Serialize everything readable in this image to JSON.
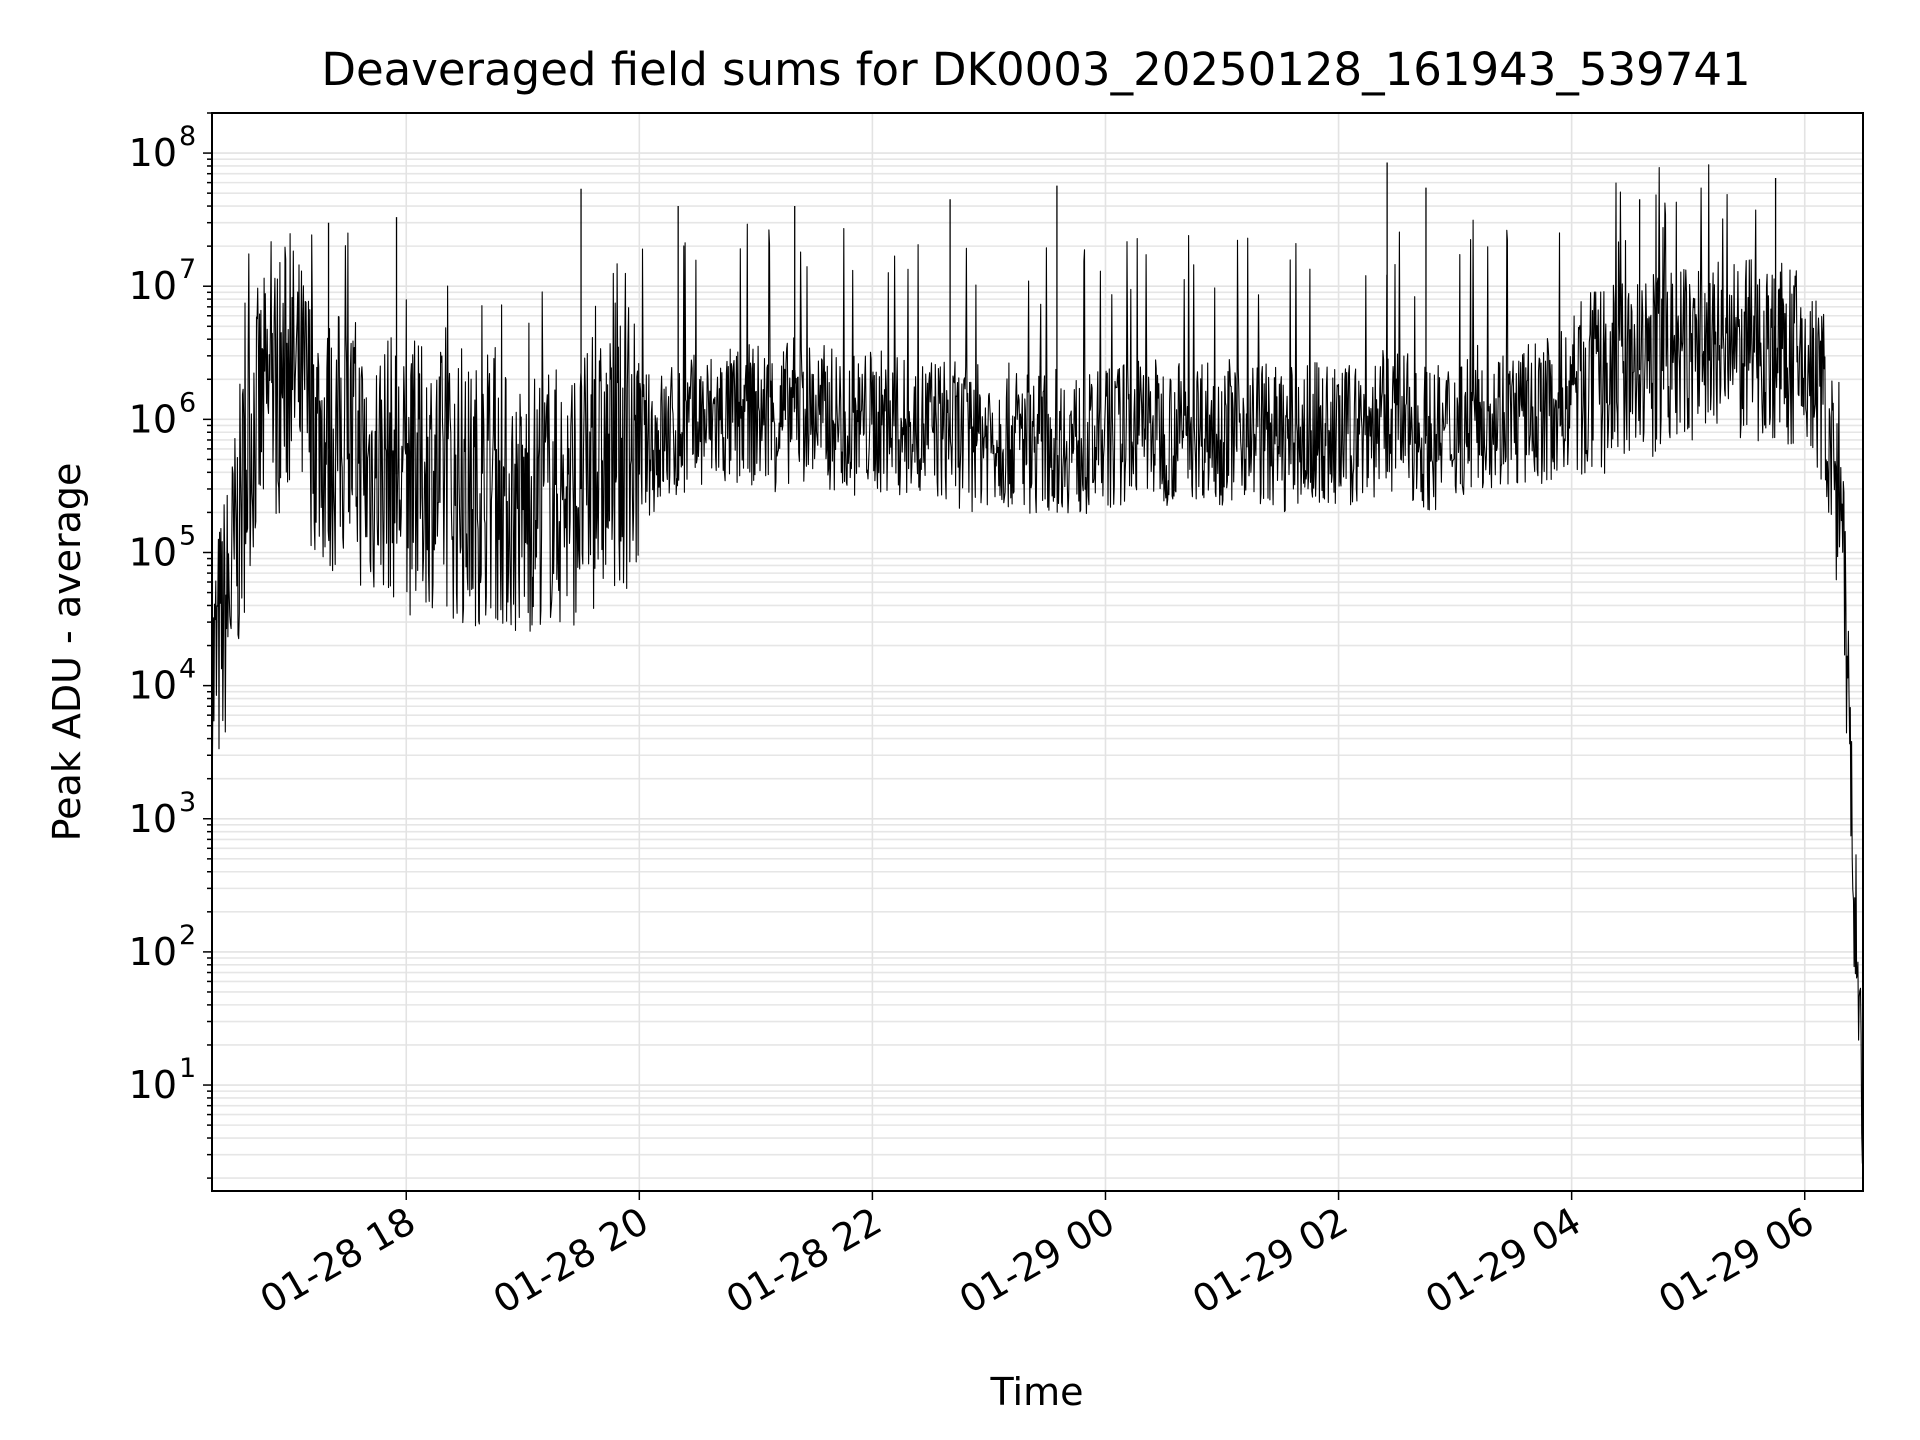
{
  "chart_data": {
    "type": "line",
    "title": "Deaveraged field sums for DK0003_20250128_161943_539741",
    "xlabel": "Time",
    "ylabel": "Peak ADU - average",
    "yscale": "log",
    "ylim": [
      1.6,
      200000000
    ],
    "xlim": [
      "2025-01-28 16:20",
      "2025-01-29 06:30"
    ],
    "grid": true,
    "x_ticks": [
      {
        "value": "2025-01-28 18:00",
        "label": "01-28 18"
      },
      {
        "value": "2025-01-28 20:00",
        "label": "01-28 20"
      },
      {
        "value": "2025-01-28 22:00",
        "label": "01-28 22"
      },
      {
        "value": "2025-01-29 00:00",
        "label": "01-29 00"
      },
      {
        "value": "2025-01-29 02:00",
        "label": "01-29 02"
      },
      {
        "value": "2025-01-29 04:00",
        "label": "01-29 04"
      },
      {
        "value": "2025-01-29 06:00",
        "label": "01-29 06"
      }
    ],
    "y_ticks": [
      {
        "value": 10,
        "base": "10",
        "exp": "1"
      },
      {
        "value": 100,
        "base": "10",
        "exp": "2"
      },
      {
        "value": 1000,
        "base": "10",
        "exp": "3"
      },
      {
        "value": 10000,
        "base": "10",
        "exp": "4"
      },
      {
        "value": 100000,
        "base": "10",
        "exp": "5"
      },
      {
        "value": 1000000,
        "base": "10",
        "exp": "6"
      },
      {
        "value": 10000000,
        "base": "10",
        "exp": "7"
      },
      {
        "value": 100000000,
        "base": "10",
        "exp": "8"
      }
    ],
    "series": [
      {
        "color": "#000000",
        "x": [
          "2025-01-28 16:20",
          "2025-01-28 16:30",
          "2025-01-28 16:40",
          "2025-01-28 16:50",
          "2025-01-28 17:00",
          "2025-01-28 17:10",
          "2025-01-28 17:20",
          "2025-01-28 17:30",
          "2025-01-28 17:40",
          "2025-01-28 17:50",
          "2025-01-28 18:00",
          "2025-01-28 18:10",
          "2025-01-28 18:20",
          "2025-01-28 18:30",
          "2025-01-28 18:40",
          "2025-01-28 18:50",
          "2025-01-28 19:00",
          "2025-01-28 19:10",
          "2025-01-28 19:20",
          "2025-01-28 19:30",
          "2025-01-28 19:40",
          "2025-01-28 19:50",
          "2025-01-28 20:00",
          "2025-01-28 20:10",
          "2025-01-28 20:20",
          "2025-01-28 20:30",
          "2025-01-28 20:40",
          "2025-01-28 20:50",
          "2025-01-28 21:00",
          "2025-01-28 21:10",
          "2025-01-28 21:20",
          "2025-01-28 21:30",
          "2025-01-28 21:40",
          "2025-01-28 21:50",
          "2025-01-28 22:00",
          "2025-01-28 22:10",
          "2025-01-28 22:20",
          "2025-01-28 22:30",
          "2025-01-28 22:40",
          "2025-01-28 22:50",
          "2025-01-28 23:00",
          "2025-01-28 23:10",
          "2025-01-28 23:20",
          "2025-01-28 23:30",
          "2025-01-28 23:40",
          "2025-01-28 23:50",
          "2025-01-29 00:00",
          "2025-01-29 00:10",
          "2025-01-29 00:20",
          "2025-01-29 00:30",
          "2025-01-29 00:40",
          "2025-01-29 00:50",
          "2025-01-29 01:00",
          "2025-01-29 01:10",
          "2025-01-29 01:20",
          "2025-01-29 01:30",
          "2025-01-29 01:40",
          "2025-01-29 01:50",
          "2025-01-29 02:00",
          "2025-01-29 02:10",
          "2025-01-29 02:20",
          "2025-01-29 02:30",
          "2025-01-29 02:40",
          "2025-01-29 02:50",
          "2025-01-29 03:00",
          "2025-01-29 03:10",
          "2025-01-29 03:20",
          "2025-01-29 03:30",
          "2025-01-29 03:40",
          "2025-01-29 03:50",
          "2025-01-29 04:00",
          "2025-01-29 04:10",
          "2025-01-29 04:20",
          "2025-01-29 04:30",
          "2025-01-29 04:40",
          "2025-01-29 04:50",
          "2025-01-29 05:00",
          "2025-01-29 05:10",
          "2025-01-29 05:20",
          "2025-01-29 05:30",
          "2025-01-29 05:40",
          "2025-01-29 05:50",
          "2025-01-29 06:00",
          "2025-01-29 06:10",
          "2025-01-29 06:20",
          "2025-01-29 06:30"
        ],
        "y": [
          10000,
          60000,
          800000,
          1500000,
          2500000,
          1200000,
          600000,
          800000,
          400000,
          500000,
          300000,
          400000,
          350000,
          250000,
          300000,
          250000,
          200000,
          300000,
          250000,
          300000,
          400000,
          500000,
          600000,
          700000,
          800000,
          900000,
          1000000,
          1000000,
          1100000,
          1000000,
          1200000,
          1100000,
          1000000,
          900000,
          1000000,
          900000,
          800000,
          900000,
          800000,
          700000,
          800000,
          750000,
          700000,
          700000,
          700000,
          600000,
          700000,
          800000,
          900000,
          800000,
          800000,
          900000,
          800000,
          900000,
          800000,
          700000,
          700000,
          800000,
          700000,
          800000,
          900000,
          1000000,
          800000,
          700000,
          900000,
          1000000,
          1100000,
          1000000,
          1100000,
          1200000,
          1500000,
          1800000,
          2000000,
          2200000,
          2500000,
          2800000,
          3000000,
          3500000,
          3000000,
          3200000,
          3500000,
          3000000,
          2500000,
          1500000,
          80000,
          3
        ],
        "peaks": [
          {
            "x": "2025-01-28 17:20",
            "y": 30000000
          },
          {
            "x": "2025-01-28 17:55",
            "y": 33000000
          },
          {
            "x": "2025-01-28 19:30",
            "y": 54000000
          },
          {
            "x": "2025-01-28 20:20",
            "y": 40000000
          },
          {
            "x": "2025-01-28 21:20",
            "y": 40000000
          },
          {
            "x": "2025-01-28 22:40",
            "y": 45000000
          },
          {
            "x": "2025-01-28 23:35",
            "y": 57000000
          },
          {
            "x": "2025-01-29 02:25",
            "y": 85000000
          },
          {
            "x": "2025-01-29 02:45",
            "y": 55000000
          },
          {
            "x": "2025-01-29 04:35",
            "y": 45000000
          },
          {
            "x": "2025-01-29 05:45",
            "y": 65000000
          }
        ]
      }
    ]
  }
}
